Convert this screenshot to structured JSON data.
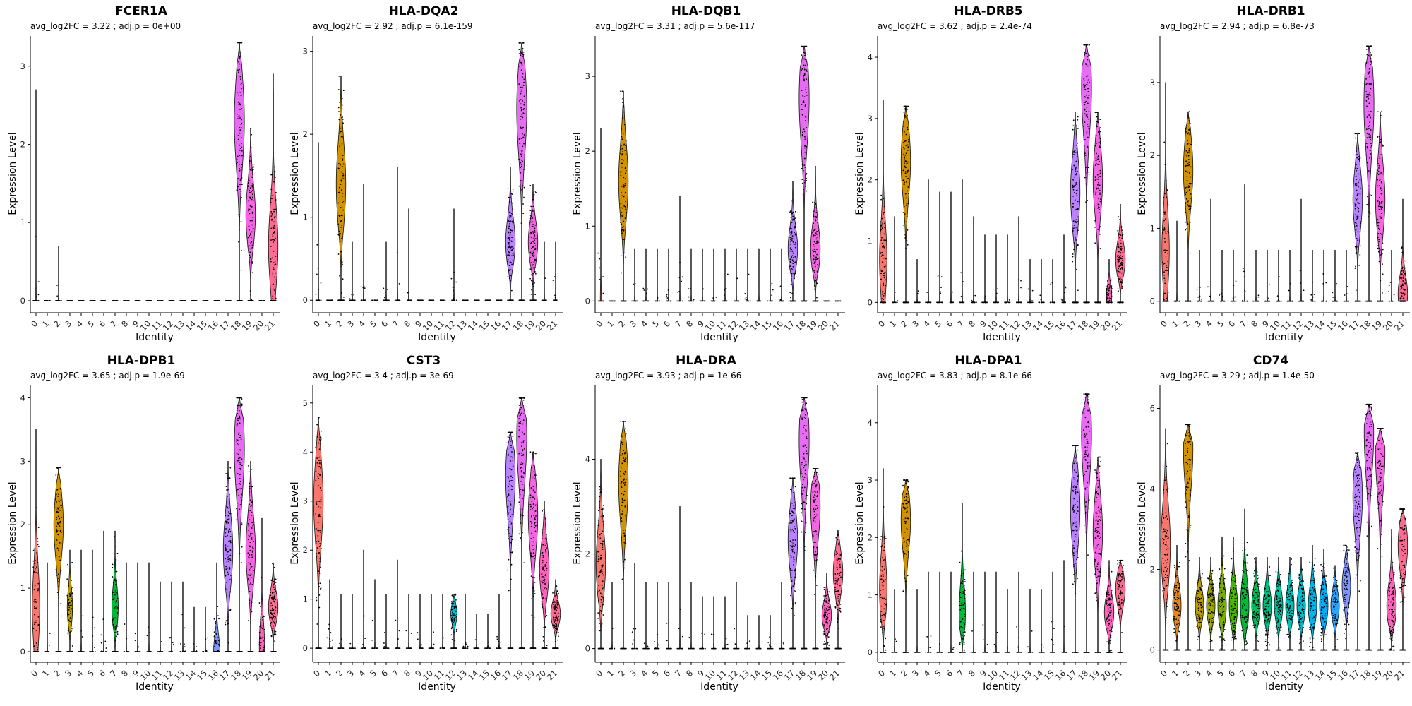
{
  "chart_data": [
    {
      "type": "violin",
      "title": "FCER1A",
      "subtitle": "avg_log2FC = 3.22 ; adj.p = 0e+00",
      "xlabel": "Identity",
      "ylabel": "Expression Level",
      "categories": [
        "0",
        "1",
        "2",
        "3",
        "4",
        "5",
        "6",
        "7",
        "8",
        "9",
        "10",
        "11",
        "12",
        "13",
        "14",
        "15",
        "16",
        "17",
        "18",
        "19",
        "20",
        "21"
      ],
      "ylim": [
        -0.1,
        3.35
      ],
      "yticks": [
        0,
        1,
        2,
        3
      ],
      "max": [
        2.7,
        0,
        0.7,
        0,
        0,
        0,
        0,
        0,
        0,
        0,
        0,
        0,
        0,
        0,
        0,
        0,
        0,
        0,
        3.3,
        2.2,
        0,
        2.9
      ],
      "median": [
        0,
        0,
        0,
        0,
        0,
        0,
        0,
        0,
        0,
        0,
        0,
        0,
        0,
        0,
        0,
        0,
        0,
        0,
        2.3,
        1.1,
        0,
        0.7
      ],
      "width": [
        0.05,
        0.04,
        0.04,
        0.04,
        0.04,
        0.04,
        0.04,
        0.04,
        0.04,
        0.04,
        0.04,
        0.04,
        0.04,
        0.04,
        0.04,
        0.04,
        0.04,
        0.04,
        0.95,
        0.9,
        0.04,
        0.9
      ]
    },
    {
      "type": "violin",
      "title": "HLA-DQA2",
      "subtitle": "avg_log2FC = 2.92 ; adj.p = 6.1e-159",
      "xlabel": "Identity",
      "ylabel": "Expression Level",
      "categories": [
        "0",
        "1",
        "2",
        "3",
        "4",
        "5",
        "6",
        "7",
        "8",
        "9",
        "10",
        "11",
        "12",
        "13",
        "14",
        "15",
        "16",
        "17",
        "18",
        "19",
        "20",
        "21"
      ],
      "ylim": [
        -0.1,
        3.15
      ],
      "yticks": [
        0,
        1,
        2,
        3
      ],
      "max": [
        1.9,
        0,
        2.7,
        0.7,
        1.4,
        0,
        0.7,
        1.6,
        1.1,
        0,
        0,
        0,
        1.1,
        0,
        0,
        0,
        0,
        1.6,
        3.1,
        1.4,
        0.7,
        0.7
      ],
      "median": [
        0,
        0,
        1.4,
        0,
        0,
        0,
        0,
        0,
        0,
        0,
        0,
        0,
        0,
        0,
        0,
        0,
        0,
        0.7,
        2.3,
        0.7,
        0,
        0
      ],
      "width": [
        0.05,
        0.04,
        0.9,
        0.04,
        0.04,
        0.04,
        0.04,
        0.04,
        0.04,
        0.04,
        0.04,
        0.04,
        0.04,
        0.04,
        0.04,
        0.04,
        0.04,
        0.9,
        0.95,
        0.9,
        0.04,
        0.04
      ]
    },
    {
      "type": "violin",
      "title": "HLA-DQB1",
      "subtitle": "avg_log2FC = 3.31 ; adj.p = 5.6e-117",
      "xlabel": "Identity",
      "ylabel": "Expression Level",
      "categories": [
        "0",
        "1",
        "2",
        "3",
        "4",
        "5",
        "6",
        "7",
        "8",
        "9",
        "10",
        "11",
        "12",
        "13",
        "14",
        "15",
        "16",
        "17",
        "18",
        "19",
        "20",
        "21"
      ],
      "ylim": [
        -0.1,
        3.5
      ],
      "yticks": [
        0,
        1,
        2,
        3
      ],
      "max": [
        2.3,
        0,
        2.8,
        0.7,
        0.7,
        0.7,
        0.7,
        1.4,
        0.7,
        0.7,
        0.7,
        0.7,
        0.7,
        0.7,
        0.7,
        0.7,
        0.7,
        1.6,
        3.4,
        1.8,
        0,
        0
      ],
      "median": [
        0,
        0,
        1.6,
        0,
        0,
        0,
        0,
        0,
        0,
        0,
        0,
        0,
        0,
        0,
        0,
        0,
        0,
        0.7,
        2.7,
        0.7,
        0,
        0
      ],
      "width": [
        0.1,
        0.04,
        0.9,
        0.04,
        0.04,
        0.04,
        0.04,
        0.04,
        0.04,
        0.04,
        0.04,
        0.04,
        0.04,
        0.04,
        0.04,
        0.04,
        0.04,
        0.9,
        0.95,
        0.9,
        0.04,
        0.04
      ]
    },
    {
      "type": "violin",
      "title": "HLA-DRB5",
      "subtitle": "avg_log2FC = 3.62 ; adj.p = 2.4e-74",
      "xlabel": "Identity",
      "ylabel": "Expression Level",
      "categories": [
        "0",
        "1",
        "2",
        "3",
        "4",
        "5",
        "6",
        "7",
        "8",
        "9",
        "10",
        "11",
        "12",
        "13",
        "14",
        "15",
        "16",
        "17",
        "18",
        "19",
        "20",
        "21"
      ],
      "ylim": [
        -0.1,
        4.3
      ],
      "yticks": [
        0,
        1,
        2,
        3,
        4
      ],
      "max": [
        3.3,
        1.4,
        3.2,
        0.7,
        2.0,
        1.8,
        1.8,
        2.0,
        1.4,
        1.1,
        1.1,
        1.1,
        1.4,
        0.7,
        0.7,
        0.7,
        1.1,
        3.1,
        4.2,
        3.1,
        0.7,
        1.6
      ],
      "median": [
        0.7,
        0,
        2.3,
        0,
        0,
        0,
        0,
        0,
        0,
        0,
        0,
        0,
        0,
        0,
        0,
        0,
        0,
        1.8,
        3.5,
        2.0,
        0.1,
        0.7
      ],
      "width": [
        0.7,
        0.05,
        0.9,
        0.04,
        0.04,
        0.04,
        0.04,
        0.04,
        0.04,
        0.04,
        0.04,
        0.04,
        0.04,
        0.04,
        0.04,
        0.04,
        0.04,
        0.9,
        0.95,
        0.9,
        0.5,
        0.9
      ]
    },
    {
      "type": "violin",
      "title": "HLA-DRB1",
      "subtitle": "avg_log2FC = 2.94 ; adj.p = 6.8e-73",
      "xlabel": "Identity",
      "ylabel": "Expression Level",
      "categories": [
        "0",
        "1",
        "2",
        "3",
        "4",
        "5",
        "6",
        "7",
        "8",
        "9",
        "10",
        "11",
        "12",
        "13",
        "14",
        "15",
        "16",
        "17",
        "18",
        "19",
        "20",
        "21"
      ],
      "ylim": [
        -0.1,
        3.6
      ],
      "yticks": [
        0,
        1,
        2,
        3
      ],
      "max": [
        3.0,
        1.1,
        2.6,
        0.7,
        1.4,
        0.7,
        0.7,
        1.6,
        0.7,
        0.7,
        0.7,
        0.7,
        1.4,
        0.7,
        0.7,
        0.7,
        0.7,
        2.3,
        3.5,
        2.6,
        0.7,
        1.4
      ],
      "median": [
        0.7,
        0,
        1.8,
        0,
        0,
        0,
        0,
        0,
        0,
        0,
        0,
        0,
        0,
        0,
        0,
        0,
        0,
        1.4,
        2.7,
        1.4,
        0,
        0.1
      ],
      "width": [
        0.7,
        0.05,
        0.9,
        0.04,
        0.04,
        0.04,
        0.04,
        0.04,
        0.04,
        0.04,
        0.04,
        0.04,
        0.04,
        0.04,
        0.04,
        0.04,
        0.04,
        0.9,
        0.95,
        0.9,
        0.04,
        0.9
      ]
    },
    {
      "type": "violin",
      "title": "HLA-DPB1",
      "subtitle": "avg_log2FC = 3.65 ; adj.p = 1.9e-69",
      "xlabel": "Identity",
      "ylabel": "Expression Level",
      "categories": [
        "0",
        "1",
        "2",
        "3",
        "4",
        "5",
        "6",
        "7",
        "8",
        "9",
        "10",
        "11",
        "12",
        "13",
        "14",
        "15",
        "16",
        "17",
        "18",
        "19",
        "20",
        "21"
      ],
      "ylim": [
        -0.1,
        4.15
      ],
      "yticks": [
        0,
        1,
        2,
        3,
        4
      ],
      "max": [
        3.5,
        1.4,
        2.9,
        1.6,
        1.6,
        1.6,
        1.9,
        1.9,
        1.4,
        1.4,
        1.4,
        1.1,
        1.1,
        1.1,
        0.7,
        0.7,
        1.4,
        3.0,
        4.0,
        3.0,
        2.1,
        1.4
      ],
      "median": [
        0.7,
        0,
        2.0,
        0.7,
        0,
        0,
        0,
        0.7,
        0,
        0,
        0,
        0,
        0,
        0,
        0,
        0,
        0,
        1.6,
        3.2,
        1.6,
        0.1,
        0.7
      ],
      "width": [
        0.7,
        0.05,
        0.9,
        0.5,
        0.04,
        0.04,
        0.04,
        0.6,
        0.04,
        0.04,
        0.04,
        0.04,
        0.04,
        0.04,
        0.04,
        0.04,
        0.6,
        0.9,
        0.95,
        0.9,
        0.5,
        0.9
      ]
    },
    {
      "type": "violin",
      "title": "CST3",
      "subtitle": "avg_log2FC = 3.4 ; adj.p = 3e-69",
      "xlabel": "Identity",
      "ylabel": "Expression Level",
      "categories": [
        "0",
        "1",
        "2",
        "3",
        "4",
        "5",
        "6",
        "7",
        "8",
        "9",
        "10",
        "11",
        "12",
        "13",
        "14",
        "15",
        "16",
        "17",
        "18",
        "19",
        "20",
        "21"
      ],
      "ylim": [
        -0.2,
        5.3
      ],
      "yticks": [
        0,
        1,
        2,
        3,
        4,
        5
      ],
      "max": [
        4.7,
        1.4,
        1.1,
        1.1,
        2.0,
        1.4,
        1.1,
        1.8,
        1.1,
        1.1,
        1.1,
        1.1,
        1.1,
        1.1,
        0.7,
        0.7,
        1.1,
        4.4,
        5.1,
        4.0,
        3.0,
        1.4
      ],
      "median": [
        3.0,
        0,
        0,
        0,
        0,
        0,
        0,
        0,
        0,
        0,
        0,
        0,
        0.7,
        0,
        0,
        0,
        0,
        3.5,
        4.3,
        2.7,
        1.6,
        0.7
      ],
      "width": [
        0.9,
        0.05,
        0.05,
        0.05,
        0.05,
        0.05,
        0.05,
        0.05,
        0.05,
        0.05,
        0.05,
        0.05,
        0.6,
        0.05,
        0.05,
        0.05,
        0.05,
        0.9,
        0.95,
        0.9,
        0.9,
        0.9
      ]
    },
    {
      "type": "violin",
      "title": "HLA-DRA",
      "subtitle": "avg_log2FC = 3.93 ; adj.p = 1e-66",
      "xlabel": "Identity",
      "ylabel": "Expression Level",
      "categories": [
        "0",
        "1",
        "2",
        "3",
        "4",
        "5",
        "6",
        "7",
        "8",
        "9",
        "10",
        "11",
        "12",
        "13",
        "14",
        "15",
        "16",
        "17",
        "18",
        "19",
        "20",
        "21"
      ],
      "ylim": [
        -0.2,
        5.5
      ],
      "yticks": [
        0,
        2,
        4
      ],
      "max": [
        4.0,
        1.4,
        4.8,
        1.8,
        1.4,
        1.4,
        1.4,
        3.0,
        1.4,
        1.1,
        1.1,
        1.1,
        1.4,
        0.7,
        0.7,
        0.7,
        1.4,
        3.6,
        5.3,
        3.8,
        1.6,
        2.5
      ],
      "median": [
        1.8,
        0,
        3.5,
        0,
        0,
        0,
        0,
        0,
        0,
        0,
        0,
        0,
        0,
        0,
        0,
        0,
        0,
        2.3,
        4.4,
        3.0,
        0.7,
        1.6
      ],
      "width": [
        0.9,
        0.05,
        0.9,
        0.05,
        0.05,
        0.05,
        0.05,
        0.05,
        0.05,
        0.05,
        0.05,
        0.05,
        0.05,
        0.05,
        0.05,
        0.05,
        0.05,
        0.9,
        0.95,
        0.9,
        0.9,
        0.9
      ]
    },
    {
      "type": "violin",
      "title": "HLA-DPA1",
      "subtitle": "avg_log2FC = 3.83 ; adj.p = 8.1e-66",
      "xlabel": "Identity",
      "ylabel": "Expression Level",
      "categories": [
        "0",
        "1",
        "2",
        "3",
        "4",
        "5",
        "6",
        "7",
        "8",
        "9",
        "10",
        "11",
        "12",
        "13",
        "14",
        "15",
        "16",
        "17",
        "18",
        "19",
        "20",
        "21"
      ],
      "ylim": [
        -0.1,
        4.6
      ],
      "yticks": [
        0,
        1,
        2,
        3,
        4
      ],
      "max": [
        3.2,
        1.1,
        3.0,
        1.1,
        1.4,
        1.4,
        1.4,
        2.6,
        1.4,
        1.4,
        1.4,
        1.1,
        1.4,
        1.1,
        1.1,
        1.4,
        1.6,
        3.6,
        4.5,
        3.4,
        1.6,
        1.6
      ],
      "median": [
        1.1,
        0,
        2.3,
        0,
        0,
        0,
        0,
        0.7,
        0,
        0,
        0,
        0,
        0,
        0,
        0,
        0,
        0,
        2.5,
        3.8,
        2.1,
        0.7,
        1.1
      ],
      "width": [
        0.7,
        0.05,
        0.9,
        0.04,
        0.04,
        0.04,
        0.04,
        0.6,
        0.04,
        0.04,
        0.04,
        0.04,
        0.04,
        0.04,
        0.04,
        0.04,
        0.04,
        0.9,
        0.95,
        0.9,
        0.9,
        0.9
      ]
    },
    {
      "type": "violin",
      "title": "CD74",
      "subtitle": "avg_log2FC = 3.29 ; adj.p = 1.4e-50",
      "xlabel": "Identity",
      "ylabel": "Expression Level",
      "categories": [
        "0",
        "1",
        "2",
        "3",
        "4",
        "5",
        "6",
        "7",
        "8",
        "9",
        "10",
        "11",
        "12",
        "13",
        "14",
        "15",
        "16",
        "17",
        "18",
        "19",
        "20",
        "21"
      ],
      "ylim": [
        -0.2,
        6.5
      ],
      "yticks": [
        0,
        2,
        4,
        6
      ],
      "max": [
        5.5,
        2.6,
        5.6,
        2.3,
        2.3,
        2.8,
        2.8,
        3.5,
        2.3,
        2.3,
        2.3,
        2.3,
        2.3,
        2.6,
        2.5,
        2.1,
        2.6,
        4.9,
        6.1,
        5.5,
        3.0,
        3.5
      ],
      "median": [
        2.6,
        1.1,
        5.0,
        1.1,
        1.1,
        1.1,
        1.1,
        1.1,
        1.1,
        1.1,
        1.1,
        1.1,
        1.1,
        1.1,
        1.1,
        1.1,
        1.6,
        3.8,
        5.4,
        4.9,
        1.1,
        2.6
      ],
      "width": [
        0.9,
        0.8,
        0.9,
        0.8,
        0.8,
        0.8,
        0.8,
        0.8,
        0.8,
        0.8,
        0.8,
        0.8,
        0.8,
        0.8,
        0.8,
        0.8,
        0.8,
        0.9,
        0.9,
        0.9,
        0.9,
        0.9
      ]
    }
  ],
  "colors": [
    "#F8766D",
    "#E7861B",
    "#D39200",
    "#BB9D00",
    "#9DA700",
    "#7CAE00",
    "#48B700",
    "#00BA38",
    "#00BD5C",
    "#00BF7D",
    "#00C19C",
    "#00C0B8",
    "#00BCD0",
    "#00B6E8",
    "#00ADFA",
    "#2BA3FF",
    "#7F96FF",
    "#B983FF",
    "#E76BF3",
    "#F564E3",
    "#FF62BC",
    "#FF6C91"
  ]
}
